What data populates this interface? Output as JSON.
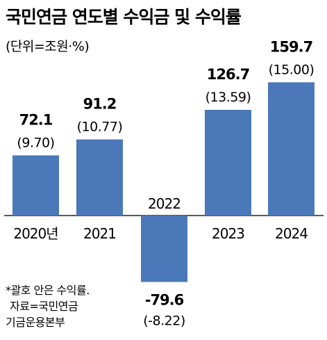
{
  "chart_data": {
    "type": "bar",
    "title": "국민연금 연도별 수익금 및 수익률",
    "subtitle": "(단위=조원·%)",
    "categories": [
      "2020년",
      "2021",
      "2022",
      "2023",
      "2024"
    ],
    "series": [
      {
        "values": [
          72.1,
          91.2,
          -79.6,
          126.7,
          159.7
        ]
      }
    ],
    "value_labels": [
      "72.1",
      "91.2",
      "-79.6",
      "126.7",
      "159.7"
    ],
    "rate_labels": [
      "(9.70)",
      "(10.77)",
      "(-8.22)",
      "(13.59)",
      "(15.00)"
    ],
    "notes": [
      "*괄호 안은 수익률.",
      "자료=국민연금",
      "기금운용본부"
    ],
    "bar_color": "#4b78b8"
  }
}
